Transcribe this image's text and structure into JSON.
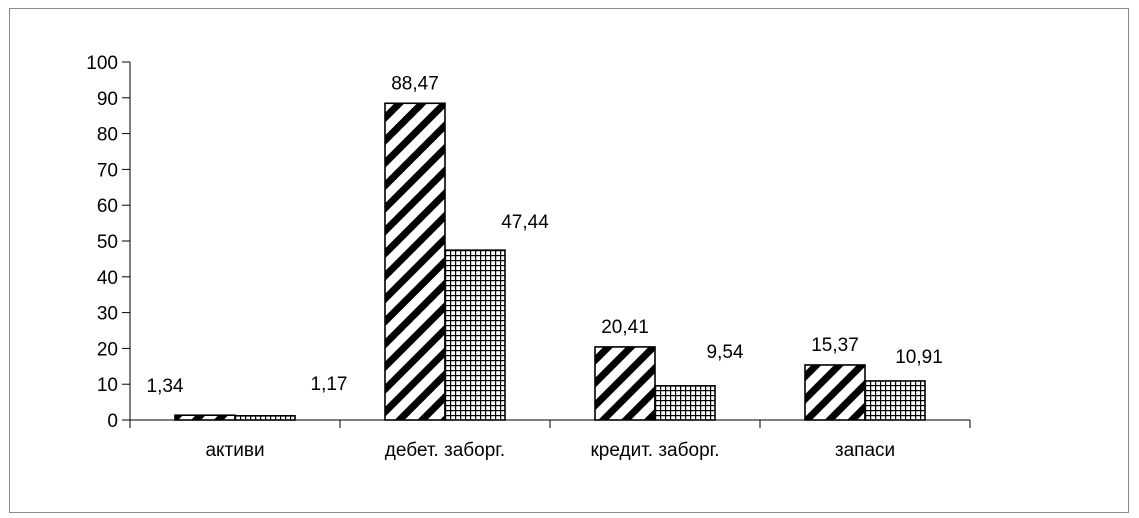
{
  "chart_data": {
    "type": "bar",
    "title": "",
    "xlabel": "",
    "ylabel": "",
    "ylim": [
      0,
      100
    ],
    "yticks": [
      0,
      10,
      20,
      30,
      40,
      50,
      60,
      70,
      80,
      90,
      100
    ],
    "categories": [
      "активи",
      "дебет. заборг.",
      "кредит. заборг.",
      "запаси"
    ],
    "series": [
      {
        "pattern": "diagonal-hatch",
        "values": [
          1.34,
          88.47,
          20.41,
          15.37
        ],
        "labels": [
          "1,34",
          "88,47",
          "20,41",
          "15,37"
        ]
      },
      {
        "pattern": "grid-hatch",
        "values": [
          1.17,
          47.44,
          9.54,
          10.91
        ],
        "labels": [
          "1,17",
          "47,44",
          "9,54",
          "10,91"
        ]
      }
    ],
    "grid": false,
    "legend": "none",
    "colors": {
      "bar_stroke": "#000000",
      "pattern_ink": "#000000",
      "background": "#ffffff",
      "axis": "#000000"
    }
  }
}
